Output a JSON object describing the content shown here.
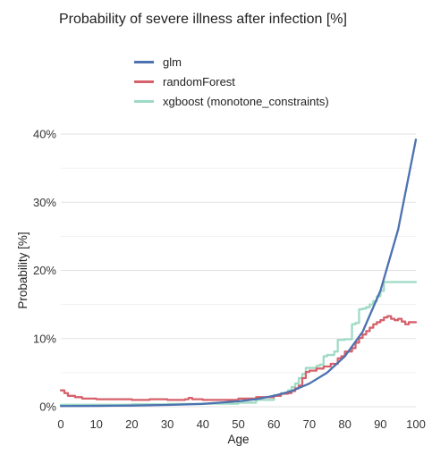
{
  "chart_data": {
    "type": "line",
    "title": "Probability of severe illness after infection [%]",
    "xlabel": "Age",
    "ylabel": "Probability [%]",
    "xlim": [
      0,
      100
    ],
    "ylim": [
      0,
      40
    ],
    "x_ticks": [
      0,
      10,
      20,
      30,
      40,
      50,
      60,
      70,
      80,
      90,
      100
    ],
    "y_ticks": [
      0,
      10,
      20,
      30,
      40
    ],
    "y_tick_labels": [
      "0%",
      "10%",
      "20%",
      "30%",
      "40%"
    ],
    "grid": true,
    "legend_position": "top",
    "series": [
      {
        "name": "glm",
        "color": "#4C72B0",
        "step": false,
        "x": [
          0,
          10,
          20,
          30,
          40,
          50,
          55,
          60,
          65,
          70,
          75,
          80,
          85,
          90,
          95,
          100
        ],
        "y": [
          0.1,
          0.12,
          0.17,
          0.26,
          0.42,
          0.8,
          1.1,
          1.6,
          2.3,
          3.4,
          5.0,
          7.4,
          11.0,
          17.0,
          26.0,
          39.2
        ]
      },
      {
        "name": "randomForest",
        "color": "#D6616B",
        "step": true,
        "x": [
          0,
          1,
          2,
          4,
          6,
          10,
          15,
          20,
          25,
          30,
          35,
          36,
          37,
          40,
          45,
          50,
          52,
          55,
          58,
          60,
          62,
          64,
          65,
          66,
          67,
          68,
          69,
          70,
          72,
          74,
          76,
          78,
          79,
          80,
          82,
          83,
          84,
          85,
          86,
          87,
          88,
          89,
          90,
          91,
          92,
          93,
          94,
          95,
          96,
          97,
          98,
          100
        ],
        "y": [
          2.4,
          2.0,
          1.6,
          1.4,
          1.2,
          1.1,
          1.1,
          1.0,
          1.1,
          1.0,
          1.1,
          1.3,
          1.1,
          1.0,
          1.0,
          1.2,
          1.2,
          1.4,
          1.4,
          1.6,
          1.9,
          2.0,
          2.3,
          2.7,
          3.1,
          4.2,
          5.1,
          5.3,
          5.6,
          5.9,
          6.3,
          7.1,
          7.4,
          8.1,
          8.6,
          9.4,
          10.1,
          10.6,
          11.1,
          11.6,
          12.1,
          12.4,
          12.7,
          13.1,
          13.3,
          12.9,
          12.7,
          12.9,
          12.5,
          12.1,
          12.4,
          12.4
        ]
      },
      {
        "name": "xgboost (monotone_constraints)",
        "color": "#9EDBC4",
        "step": true,
        "x": [
          0,
          10,
          20,
          30,
          40,
          50,
          55,
          60,
          62,
          64,
          65,
          66,
          67,
          68,
          69,
          70,
          72,
          73,
          74,
          75,
          77,
          78,
          80,
          82,
          83,
          84,
          85,
          86,
          87,
          88,
          89,
          90,
          91,
          95,
          100
        ],
        "y": [
          0.3,
          0.3,
          0.35,
          0.4,
          0.45,
          0.6,
          1.0,
          1.7,
          2.0,
          2.4,
          2.9,
          3.4,
          4.2,
          4.8,
          5.7,
          5.7,
          6.0,
          6.2,
          7.4,
          7.6,
          8.1,
          9.8,
          9.9,
          12.1,
          12.3,
          14.3,
          14.4,
          14.6,
          15.0,
          15.5,
          16.2,
          17.0,
          18.3,
          18.3,
          18.3
        ]
      }
    ]
  }
}
